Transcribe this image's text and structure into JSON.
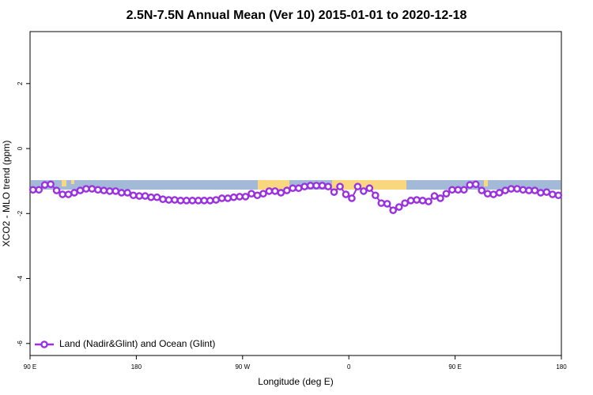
{
  "chart_data": {
    "type": "line",
    "title": "2.5N-7.5N Annual Mean (Ver 10)   2015-01-01 to 2020-12-18",
    "x_label": "Longitude (deg E)",
    "y_label": "XCO2 - MLO trend (ppm)",
    "xlim": [
      90,
      540
    ],
    "ylim": [
      -6.37,
      3.6
    ],
    "xticks": [
      {
        "value": 90,
        "label": "90 E"
      },
      180,
      {
        "value": 270,
        "label": "90 W"
      },
      {
        "value": 360,
        "label": "0"
      },
      {
        "value": 450,
        "label": "90 E"
      },
      {
        "value": 540,
        "label": "180"
      }
    ],
    "yticks": [
      -6,
      -4,
      -2,
      0,
      2
    ],
    "legend": "bottom-left",
    "x": [
      92.5,
      97.5,
      102.5,
      107.5,
      112.5,
      117.5,
      122.5,
      127.5,
      132.5,
      137.5,
      142.5,
      147.5,
      152.5,
      157.5,
      162.5,
      167.5,
      172.5,
      177.5,
      182.5,
      187.5,
      192.5,
      197.5,
      202.5,
      207.5,
      212.5,
      217.5,
      222.5,
      227.5,
      232.5,
      237.5,
      242.5,
      247.5,
      252.5,
      257.5,
      262.5,
      267.5,
      272.5,
      277.5,
      282.5,
      287.5,
      292.5,
      297.5,
      302.5,
      307.5,
      312.5,
      317.5,
      322.5,
      327.5,
      332.5,
      337.5,
      342.5,
      347.5,
      352.5,
      357.5,
      362.5,
      367.5,
      372.5,
      377.5,
      382.5,
      387.5,
      392.5,
      397.5,
      402.5,
      407.5,
      412.5,
      417.5,
      422.5,
      427.5,
      432.5,
      437.5,
      442.5,
      447.5,
      452.5,
      457.5,
      462.5,
      467.5,
      472.5,
      477.5,
      482.5,
      487.5,
      492.5,
      497.5,
      502.5,
      507.5,
      512.5,
      517.5,
      522.5,
      527.5,
      532.5,
      537.5
    ],
    "series": [
      {
        "name": "Land (Nadir&Glint) and Ocean (Glint)",
        "color": "#9b30e0",
        "values": [
          -1.27,
          -1.27,
          -1.12,
          -1.1,
          -1.29,
          -1.41,
          -1.41,
          -1.36,
          -1.29,
          -1.24,
          -1.24,
          -1.27,
          -1.29,
          -1.31,
          -1.31,
          -1.36,
          -1.36,
          -1.44,
          -1.46,
          -1.46,
          -1.5,
          -1.5,
          -1.56,
          -1.58,
          -1.58,
          -1.6,
          -1.6,
          -1.6,
          -1.6,
          -1.6,
          -1.6,
          -1.58,
          -1.53,
          -1.53,
          -1.5,
          -1.48,
          -1.48,
          -1.39,
          -1.44,
          -1.39,
          -1.31,
          -1.31,
          -1.36,
          -1.29,
          -1.22,
          -1.22,
          -1.17,
          -1.14,
          -1.14,
          -1.14,
          -1.17,
          -1.34,
          -1.17,
          -1.41,
          -1.53,
          -1.17,
          -1.31,
          -1.22,
          -1.44,
          -1.68,
          -1.7,
          -1.9,
          -1.8,
          -1.68,
          -1.6,
          -1.58,
          -1.6,
          -1.63,
          -1.46,
          -1.53,
          -1.39,
          -1.27,
          -1.27,
          -1.27,
          -1.12,
          -1.1,
          -1.29,
          -1.39,
          -1.41,
          -1.36,
          -1.29,
          -1.24,
          -1.24,
          -1.27,
          -1.29,
          -1.29,
          -1.36,
          -1.34,
          -1.41,
          -1.44
        ]
      }
    ]
  }
}
